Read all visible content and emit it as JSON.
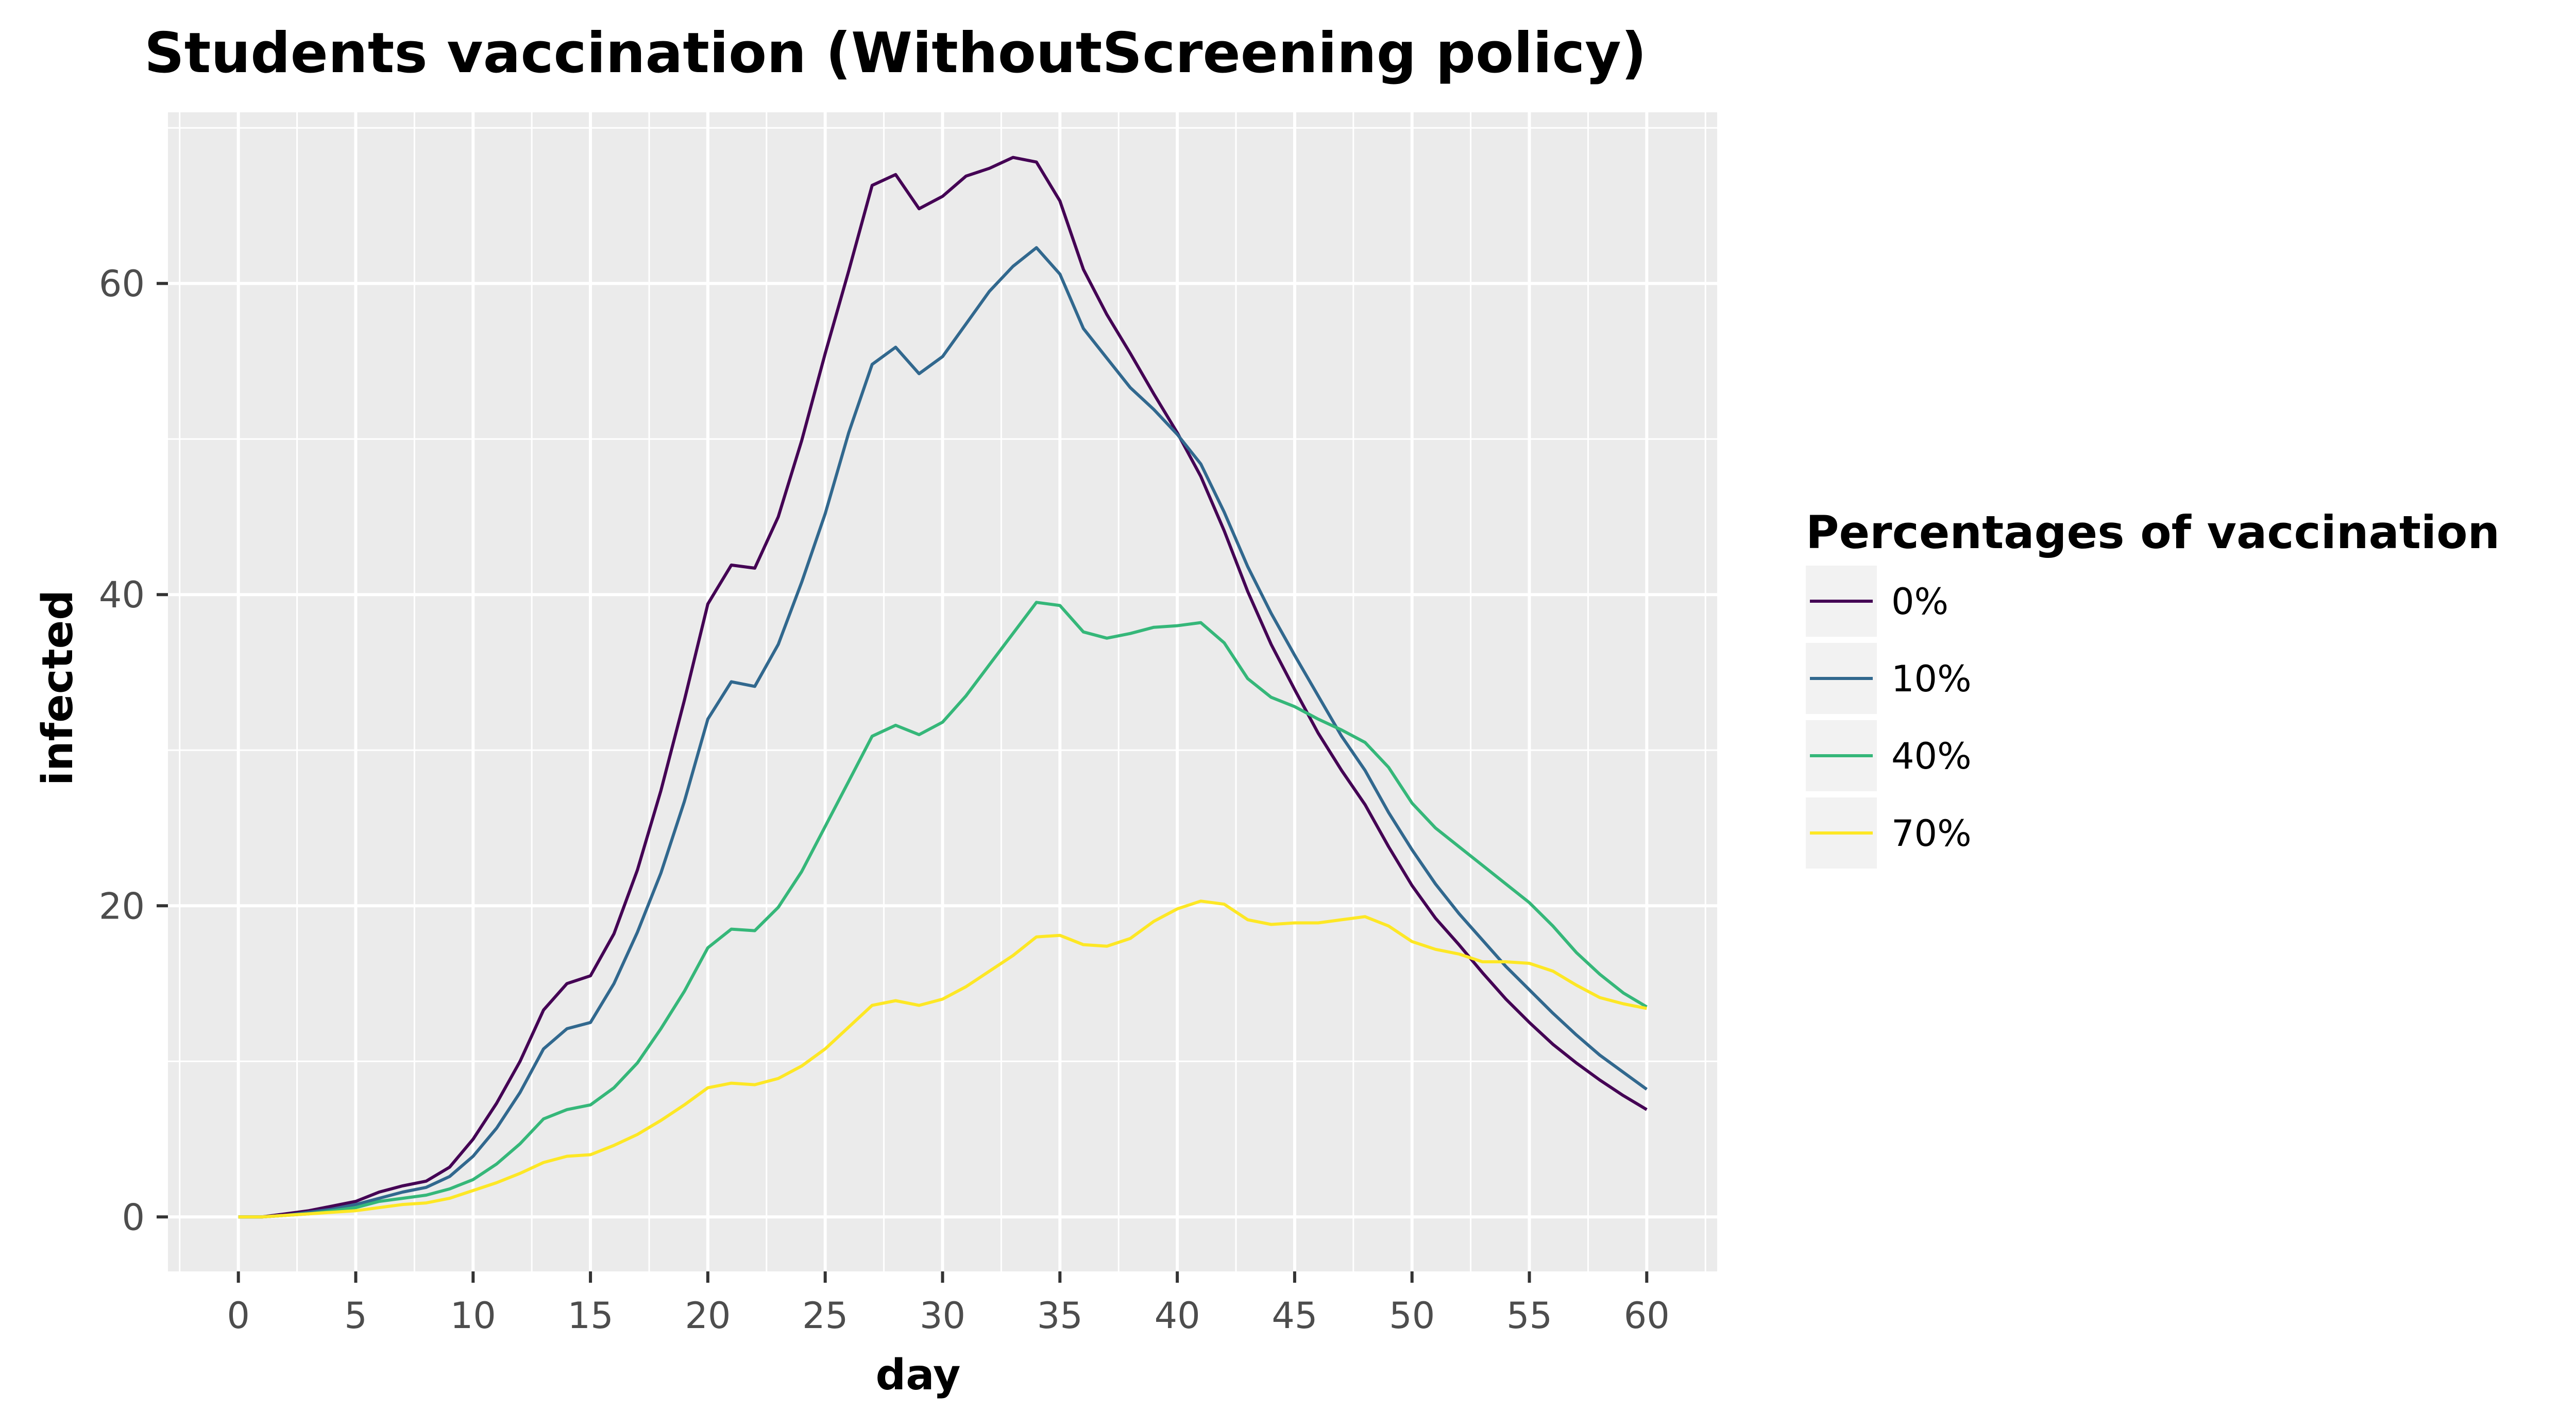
{
  "chart_data": {
    "type": "line",
    "title": "Students vaccination (WithoutScreening policy)",
    "xlabel": "day",
    "ylabel": "infected",
    "xlim": [
      -3,
      63
    ],
    "ylim": [
      -3.5,
      71
    ],
    "x_ticks": [
      0,
      5,
      10,
      15,
      20,
      25,
      30,
      35,
      40,
      45,
      50,
      55,
      60
    ],
    "x_tick_labels": [
      "0",
      "5",
      "10",
      "15",
      "20",
      "25",
      "30",
      "35",
      "40",
      "45",
      "50",
      "55",
      "60"
    ],
    "y_ticks": [
      0,
      20,
      40,
      60
    ],
    "y_tick_labels": [
      "0",
      "20",
      "40",
      "60"
    ],
    "grid": true,
    "legend": {
      "title": "Percentages of vaccination",
      "position": "right"
    },
    "x": [
      0,
      1,
      2,
      3,
      4,
      5,
      6,
      7,
      8,
      9,
      10,
      11,
      12,
      13,
      14,
      15,
      16,
      17,
      18,
      19,
      20,
      21,
      22,
      23,
      24,
      25,
      26,
      27,
      28,
      29,
      30,
      31,
      32,
      33,
      34,
      35,
      36,
      37,
      38,
      39,
      40,
      41,
      42,
      43,
      44,
      45,
      46,
      47,
      48,
      49,
      50,
      51,
      52,
      53,
      54,
      55,
      56,
      57,
      58,
      59,
      60
    ],
    "series": [
      {
        "name": "0%",
        "color": "#440154",
        "values": [
          0,
          0,
          0.2,
          0.4,
          0.7,
          1.0,
          1.6,
          2.0,
          2.3,
          3.2,
          5.0,
          7.3,
          10.0,
          13.3,
          15.0,
          15.5,
          18.2,
          22.3,
          27.4,
          33.2,
          39.4,
          41.9,
          41.7,
          45.0,
          49.9,
          55.5,
          60.8,
          66.3,
          67.0,
          64.8,
          65.6,
          66.9,
          67.4,
          68.1,
          67.8,
          65.3,
          60.9,
          58.0,
          55.5,
          52.9,
          50.4,
          47.6,
          44.1,
          40.2,
          36.8,
          33.9,
          31.1,
          28.7,
          26.5,
          23.8,
          21.3,
          19.2,
          17.5,
          15.7,
          14.0,
          12.5,
          11.1,
          9.9,
          8.8,
          7.8,
          6.9
        ]
      },
      {
        "name": "10%",
        "color": "#31688e",
        "values": [
          0,
          0,
          0.1,
          0.3,
          0.5,
          0.8,
          1.2,
          1.6,
          1.9,
          2.6,
          3.9,
          5.7,
          8.0,
          10.8,
          12.1,
          12.5,
          15.0,
          18.3,
          22.1,
          26.7,
          32.0,
          34.4,
          34.1,
          36.8,
          40.8,
          45.2,
          50.4,
          54.8,
          55.9,
          54.2,
          55.3,
          57.4,
          59.5,
          61.1,
          62.3,
          60.6,
          57.1,
          55.2,
          53.3,
          51.9,
          50.3,
          48.4,
          45.3,
          41.8,
          38.8,
          36.1,
          33.5,
          30.9,
          28.7,
          26.0,
          23.6,
          21.4,
          19.5,
          17.8,
          16.1,
          14.6,
          13.1,
          11.7,
          10.4,
          9.3,
          8.2
        ]
      },
      {
        "name": "40%",
        "color": "#35b779",
        "values": [
          0,
          0,
          0.1,
          0.2,
          0.4,
          0.6,
          1.0,
          1.2,
          1.4,
          1.8,
          2.4,
          3.4,
          4.7,
          6.3,
          6.9,
          7.2,
          8.3,
          9.9,
          12.1,
          14.5,
          17.3,
          18.5,
          18.4,
          19.9,
          22.2,
          25.1,
          28.0,
          30.9,
          31.6,
          31.0,
          31.8,
          33.5,
          35.5,
          37.5,
          39.5,
          39.3,
          37.6,
          37.2,
          37.5,
          37.9,
          38.0,
          38.2,
          36.9,
          34.6,
          33.4,
          32.8,
          32.0,
          31.3,
          30.5,
          28.9,
          26.6,
          25.0,
          23.8,
          22.6,
          21.4,
          20.2,
          18.7,
          17.0,
          15.6,
          14.4,
          13.5
        ]
      },
      {
        "name": "70%",
        "color": "#fde725",
        "values": [
          0,
          0,
          0.1,
          0.2,
          0.3,
          0.4,
          0.6,
          0.8,
          0.9,
          1.2,
          1.7,
          2.2,
          2.8,
          3.5,
          3.9,
          4.0,
          4.6,
          5.3,
          6.2,
          7.2,
          8.3,
          8.6,
          8.5,
          8.9,
          9.7,
          10.8,
          12.2,
          13.6,
          13.9,
          13.6,
          14.0,
          14.8,
          15.8,
          16.8,
          18.0,
          18.1,
          17.5,
          17.4,
          17.9,
          19.0,
          19.8,
          20.3,
          20.1,
          19.1,
          18.8,
          18.9,
          18.9,
          19.1,
          19.3,
          18.7,
          17.7,
          17.2,
          16.9,
          16.4,
          16.4,
          16.3,
          15.8,
          14.9,
          14.1,
          13.7,
          13.4
        ]
      }
    ]
  }
}
